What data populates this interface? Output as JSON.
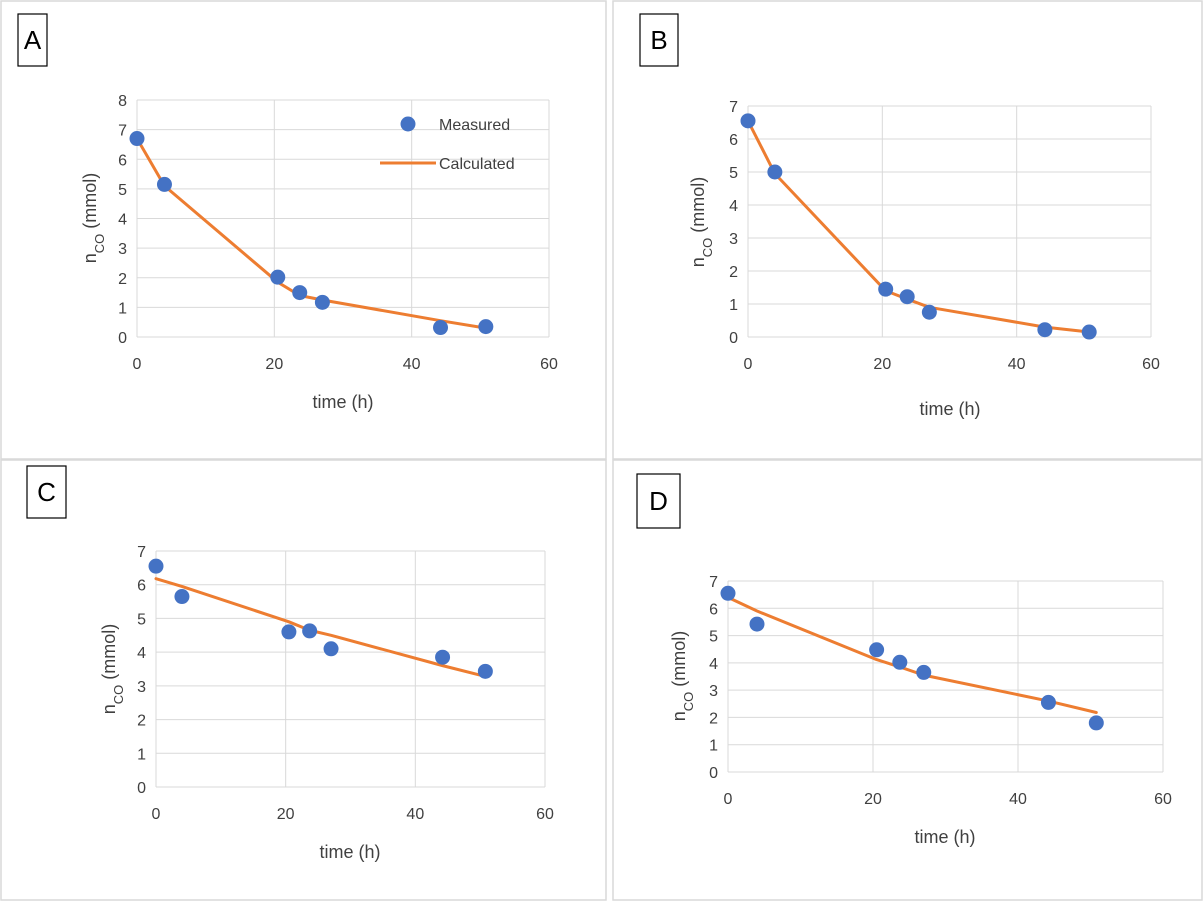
{
  "chart_data": [
    {
      "type": "line",
      "panel_label": "A",
      "xlabel": "time (h)",
      "ylabel": {
        "main": "n",
        "sub": "CO",
        "unit": " (mmol)"
      },
      "xlim": [
        0,
        60
      ],
      "x_ticks": [
        0,
        20,
        40,
        60
      ],
      "ylim": [
        0,
        8
      ],
      "y_ticks": [
        0,
        1,
        2,
        3,
        4,
        5,
        6,
        7,
        8
      ],
      "grid": "vertical and horizontal",
      "legend": {
        "placement": "top-right",
        "entries": [
          "Measured",
          "Calculated"
        ]
      },
      "series": [
        {
          "name": "Measured",
          "style": "markers",
          "color": "#4472c4",
          "x": [
            0,
            4,
            20.5,
            23.7,
            27,
            44.2,
            50.8
          ],
          "y": [
            6.7,
            5.15,
            2.02,
            1.5,
            1.17,
            0.32,
            0.35
          ]
        },
        {
          "name": "Calculated",
          "style": "line",
          "color": "#ed7d31",
          "x": [
            0,
            4,
            20.5,
            23.7,
            27,
            44.2,
            50.8
          ],
          "y": [
            6.7,
            5.1,
            1.85,
            1.4,
            1.25,
            0.55,
            0.3
          ]
        }
      ]
    },
    {
      "type": "line",
      "panel_label": "B",
      "xlabel": "time (h)",
      "ylabel": {
        "main": "n",
        "sub": "CO",
        "unit": " (mmol)"
      },
      "xlim": [
        0,
        60
      ],
      "x_ticks": [
        0,
        20,
        40,
        60
      ],
      "ylim": [
        0,
        7
      ],
      "y_ticks": [
        0,
        1,
        2,
        3,
        4,
        5,
        6,
        7
      ],
      "grid": "vertical and horizontal",
      "series": [
        {
          "name": "Measured",
          "style": "markers",
          "color": "#4472c4",
          "x": [
            0,
            4,
            20.5,
            23.7,
            27,
            44.2,
            50.8
          ],
          "y": [
            6.55,
            5.0,
            1.45,
            1.22,
            0.75,
            0.22,
            0.15
          ]
        },
        {
          "name": "Calculated",
          "style": "line",
          "color": "#ed7d31",
          "x": [
            0,
            4,
            20.5,
            23.7,
            27,
            44.2,
            50.8
          ],
          "y": [
            6.55,
            4.95,
            1.4,
            1.15,
            0.9,
            0.3,
            0.15
          ]
        }
      ]
    },
    {
      "type": "line",
      "panel_label": "C",
      "xlabel": "time (h)",
      "ylabel": {
        "main": "n",
        "sub": "CO",
        "unit": " (mmol)"
      },
      "xlim": [
        0,
        60
      ],
      "x_ticks": [
        0,
        20,
        40,
        60
      ],
      "ylim": [
        0,
        7
      ],
      "y_ticks": [
        0,
        1,
        2,
        3,
        4,
        5,
        6,
        7
      ],
      "grid": "vertical and horizontal",
      "series": [
        {
          "name": "Measured",
          "style": "markers",
          "color": "#4472c4",
          "x": [
            0,
            4,
            20.5,
            23.7,
            27,
            44.2,
            50.8
          ],
          "y": [
            6.55,
            5.65,
            4.6,
            4.63,
            4.1,
            3.85,
            3.43
          ]
        },
        {
          "name": "Calculated",
          "style": "line",
          "color": "#ed7d31",
          "x": [
            0,
            4,
            20.5,
            23.7,
            27,
            44.2,
            50.8
          ],
          "y": [
            6.18,
            5.95,
            4.9,
            4.65,
            4.5,
            3.6,
            3.28
          ]
        }
      ]
    },
    {
      "type": "line",
      "panel_label": "D",
      "xlabel": "time (h)",
      "ylabel": {
        "main": "n",
        "sub": "CO",
        "unit": " (mmol)"
      },
      "xlim": [
        0,
        60
      ],
      "x_ticks": [
        0,
        20,
        40,
        60
      ],
      "ylim": [
        0,
        7
      ],
      "y_ticks": [
        0,
        1,
        2,
        3,
        4,
        5,
        6,
        7
      ],
      "grid": "vertical and horizontal",
      "series": [
        {
          "name": "Measured",
          "style": "markers",
          "color": "#4472c4",
          "x": [
            0,
            4,
            20.5,
            23.7,
            27,
            44.2,
            50.8
          ],
          "y": [
            6.55,
            5.42,
            4.48,
            4.02,
            3.65,
            2.55,
            1.8
          ]
        },
        {
          "name": "Calculated",
          "style": "line",
          "color": "#ed7d31",
          "x": [
            0,
            4,
            20.5,
            23.7,
            27,
            44.2,
            50.8
          ],
          "y": [
            6.4,
            5.9,
            4.12,
            3.85,
            3.55,
            2.6,
            2.18
          ]
        }
      ]
    }
  ]
}
